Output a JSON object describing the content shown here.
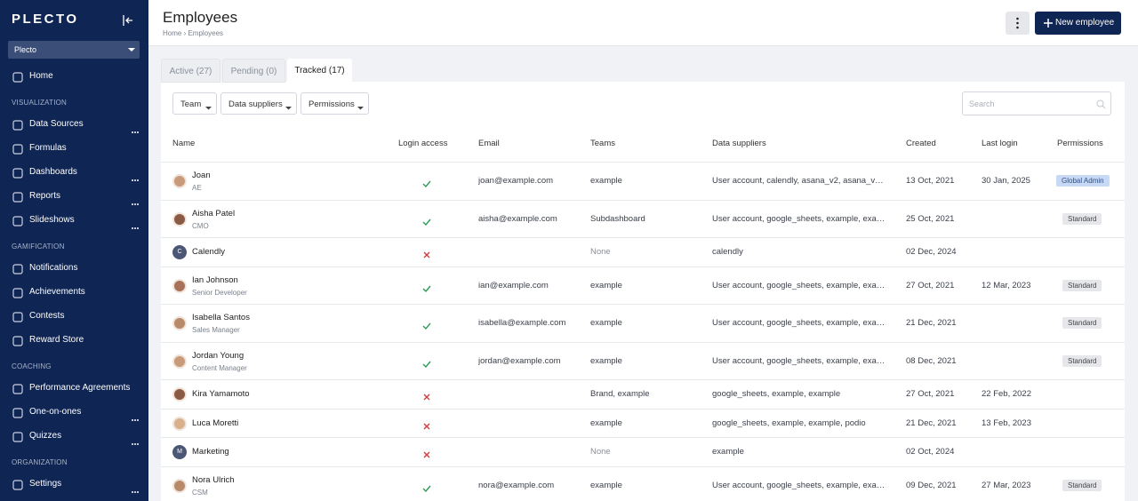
{
  "sidebar": {
    "logo": "PLECTO",
    "org": "Plecto",
    "nav": [
      {
        "label": "Home"
      },
      {
        "section": "VISUALIZATION"
      },
      {
        "label": "Data Sources",
        "more": true
      },
      {
        "label": "Formulas"
      },
      {
        "label": "Dashboards",
        "more": true
      },
      {
        "label": "Reports",
        "more": true
      },
      {
        "label": "Slideshows",
        "more": true
      },
      {
        "section": "GAMIFICATION"
      },
      {
        "label": "Notifications"
      },
      {
        "label": "Achievements"
      },
      {
        "label": "Contests"
      },
      {
        "label": "Reward Store"
      },
      {
        "section": "COACHING"
      },
      {
        "label": "Performance Agreements"
      },
      {
        "label": "One-on-ones",
        "more": true
      },
      {
        "label": "Quizzes",
        "more": true
      },
      {
        "section": "ORGANIZATION"
      },
      {
        "label": "Settings",
        "more": true
      }
    ]
  },
  "header": {
    "title": "Employees",
    "breadcrumb": [
      "Home",
      "Employees"
    ],
    "button": "New employee"
  },
  "tabs": [
    {
      "label": "Active (27)"
    },
    {
      "label": "Pending (0)"
    },
    {
      "label": "Tracked (17)",
      "selected": true
    }
  ],
  "filters": [
    "Team",
    "Data suppliers",
    "Permissions"
  ],
  "search_placeholder": "Search",
  "table": {
    "columns": [
      "Name",
      "Login access",
      "Email",
      "Teams",
      "Data suppliers",
      "Created",
      "Last login",
      "Permissions"
    ],
    "rows": [
      {
        "name": "Joan",
        "subtitle": "AE",
        "login": true,
        "email": "joan@example.com",
        "teams": "example",
        "suppliers": "User account, calendly, asana_v2, asana_v2, …",
        "created": "13 Oct, 2021",
        "last_login": "30 Jan, 2025",
        "permission": "Global Admin"
      },
      {
        "name": "Aisha Patel",
        "subtitle": "CMO",
        "login": true,
        "email": "aisha@example.com",
        "teams": "Subdashboard",
        "suppliers": "User account, google_sheets, example, exa…",
        "created": "25 Oct, 2021",
        "last_login": "",
        "permission": "Standard"
      },
      {
        "name": "Calendly",
        "initial": "C",
        "login": false,
        "email": "",
        "teams": "None",
        "suppliers": "calendly",
        "created": "02 Dec, 2024",
        "last_login": "",
        "permission": ""
      },
      {
        "name": "Ian Johnson",
        "subtitle": "Senior Developer",
        "login": true,
        "email": "ian@example.com",
        "teams": "example",
        "suppliers": "User account, google_sheets, example, exa…",
        "created": "27 Oct, 2021",
        "last_login": "12 Mar, 2023",
        "permission": "Standard"
      },
      {
        "name": "Isabella Santos",
        "subtitle": "Sales Manager",
        "login": true,
        "email": "isabella@example.com",
        "teams": "example",
        "suppliers": "User account, google_sheets, example, exa…",
        "created": "21 Dec, 2021",
        "last_login": "",
        "permission": "Standard"
      },
      {
        "name": "Jordan Young",
        "subtitle": "Content Manager",
        "login": true,
        "email": "jordan@example.com",
        "teams": "example",
        "suppliers": "User account, google_sheets, example, exa…",
        "created": "08 Dec, 2021",
        "last_login": "",
        "permission": "Standard"
      },
      {
        "name": "Kira Yamamoto",
        "login": false,
        "email": "",
        "teams": "Brand, example",
        "suppliers": "google_sheets, example, example",
        "created": "27 Oct, 2021",
        "last_login": "22 Feb, 2022",
        "permission": ""
      },
      {
        "name": "Luca Moretti",
        "login": false,
        "email": "",
        "teams": "example",
        "suppliers": "google_sheets, example, example, podio",
        "created": "21 Dec, 2021",
        "last_login": "13 Feb, 2023",
        "permission": ""
      },
      {
        "name": "Marketing",
        "initial": "M",
        "login": false,
        "email": "",
        "teams": "None",
        "suppliers": "example",
        "created": "02 Oct, 2024",
        "last_login": "",
        "permission": ""
      },
      {
        "name": "Nora Ulrich",
        "subtitle": "CSM",
        "login": true,
        "email": "nora@example.com",
        "teams": "example",
        "suppliers": "User account, google_sheets, example, exa…",
        "created": "09 Dec, 2021",
        "last_login": "27 Mar, 2023",
        "permission": "Standard"
      }
    ]
  }
}
